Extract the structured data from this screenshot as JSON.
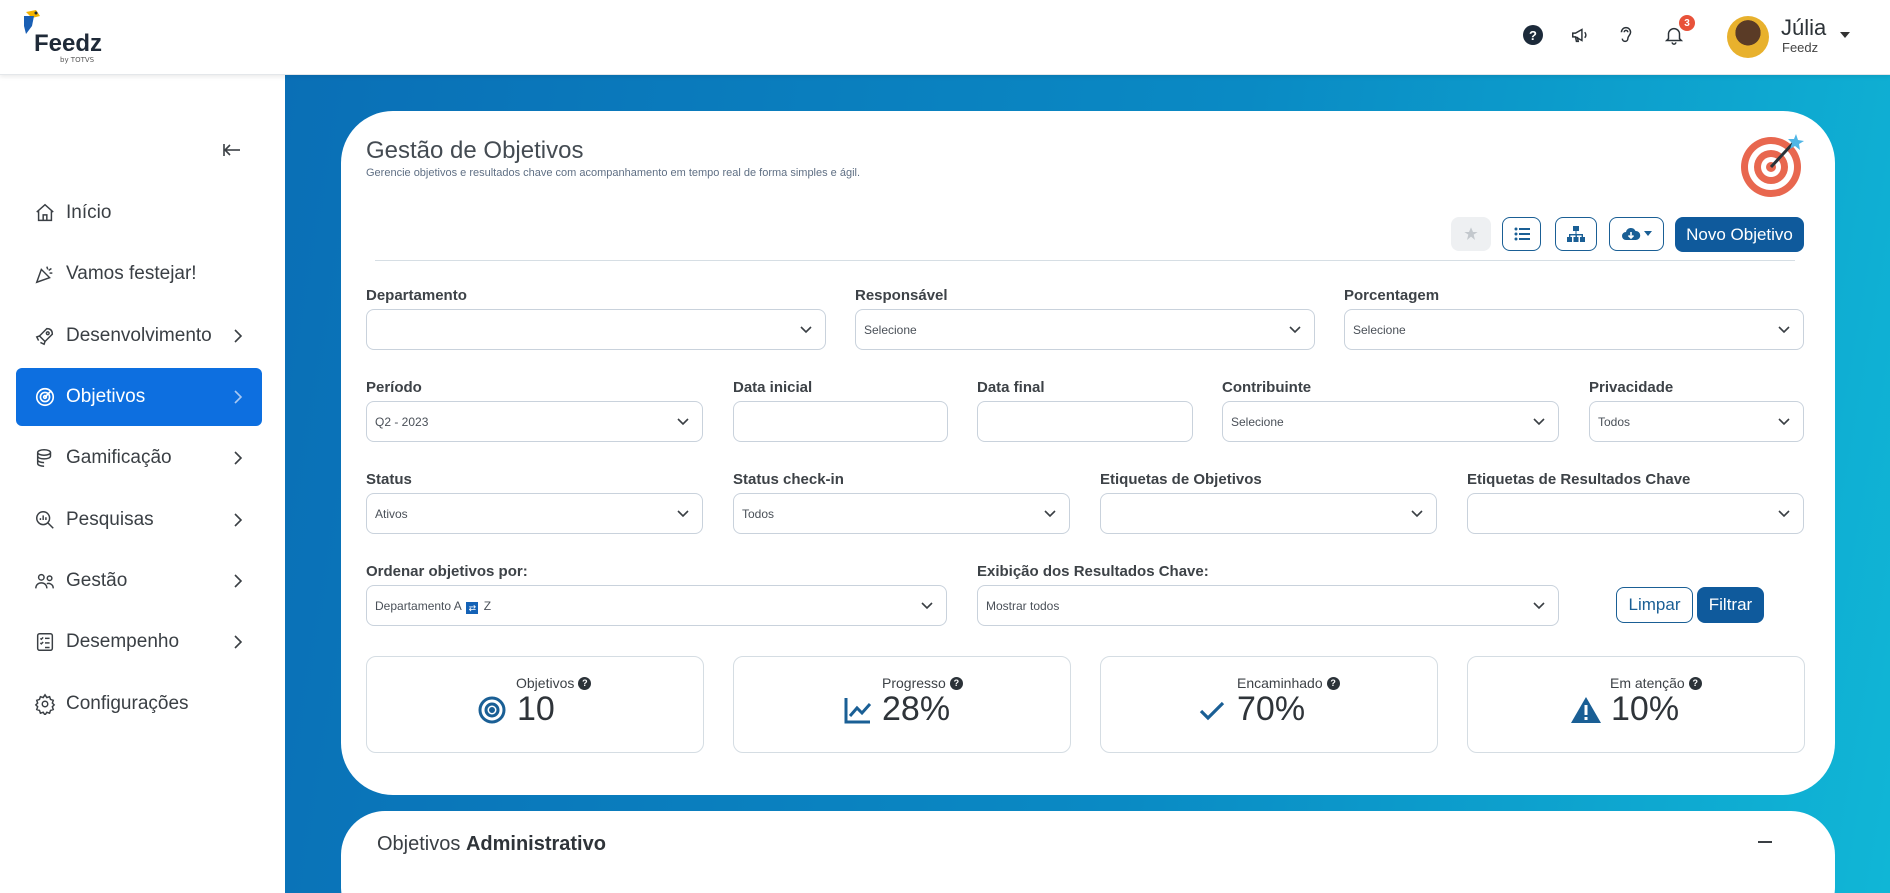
{
  "header": {
    "logo_text": "Feedz",
    "logo_sub": "by TOTVS",
    "notifications_count": "3",
    "user_name": "Júlia",
    "user_org": "Feedz",
    "icons": [
      "help-icon",
      "megaphone-icon",
      "ear-icon",
      "bell-icon"
    ]
  },
  "sidebar": {
    "items": [
      {
        "label": "Início",
        "icon": "home-icon",
        "chevron": false,
        "active": false
      },
      {
        "label": "Vamos festejar!",
        "icon": "party-icon",
        "chevron": false,
        "active": false
      },
      {
        "label": "Desenvolvimento",
        "icon": "rocket-icon",
        "chevron": true,
        "active": false
      },
      {
        "label": "Objetivos",
        "icon": "target-icon",
        "chevron": true,
        "active": true
      },
      {
        "label": "Gamificação",
        "icon": "coins-icon",
        "chevron": true,
        "active": false
      },
      {
        "label": "Pesquisas",
        "icon": "search-chart-icon",
        "chevron": true,
        "active": false
      },
      {
        "label": "Gestão",
        "icon": "people-icon",
        "chevron": true,
        "active": false
      },
      {
        "label": "Desempenho",
        "icon": "checklist-icon",
        "chevron": true,
        "active": false
      },
      {
        "label": "Configurações",
        "icon": "gear-icon",
        "chevron": false,
        "active": false
      }
    ]
  },
  "page": {
    "title": "Gestão de Objetivos",
    "subtitle": "Gerencie objetivos e resultados chave com acompanhamento em tempo real de forma simples e ágil.",
    "new_button": "Novo Objetivo"
  },
  "filters": {
    "departamento": {
      "label": "Departamento",
      "value": ""
    },
    "responsavel": {
      "label": "Responsável",
      "value": "Selecione"
    },
    "porcentagem": {
      "label": "Porcentagem",
      "value": "Selecione"
    },
    "periodo": {
      "label": "Período",
      "value": "Q2 - 2023"
    },
    "data_inicial": {
      "label": "Data inicial",
      "value": ""
    },
    "data_final": {
      "label": "Data final",
      "value": ""
    },
    "contribuinte": {
      "label": "Contribuinte",
      "value": "Selecione"
    },
    "privacidade": {
      "label": "Privacidade",
      "value": "Todos"
    },
    "status": {
      "label": "Status",
      "value": "Ativos"
    },
    "status_checkin": {
      "label": "Status check-in",
      "value": "Todos"
    },
    "etiquetas_objetivos": {
      "label": "Etiquetas de Objetivos",
      "value": ""
    },
    "etiquetas_resultados": {
      "label": "Etiquetas de Resultados Chave",
      "value": ""
    },
    "ordenar": {
      "label": "Ordenar objetivos por:",
      "value_a": "Departamento A",
      "value_z": "Z"
    },
    "exibicao": {
      "label": "Exibição dos Resultados Chave:",
      "value": "Mostrar todos"
    },
    "clear_button": "Limpar",
    "filter_button": "Filtrar"
  },
  "stats": [
    {
      "label": "Objetivos",
      "value": "10",
      "icon": "bullseye-icon"
    },
    {
      "label": "Progresso",
      "value": "28%",
      "icon": "line-chart-icon"
    },
    {
      "label": "Encaminhado",
      "value": "70%",
      "icon": "check-icon"
    },
    {
      "label": "Em atenção",
      "value": "10%",
      "icon": "warning-icon"
    }
  ],
  "section": {
    "prefix": "Objetivos",
    "name": "Administrativo"
  },
  "colors": {
    "primary": "#0f5a9c",
    "active_nav": "#0d6fe0",
    "badge": "#e8523a"
  }
}
